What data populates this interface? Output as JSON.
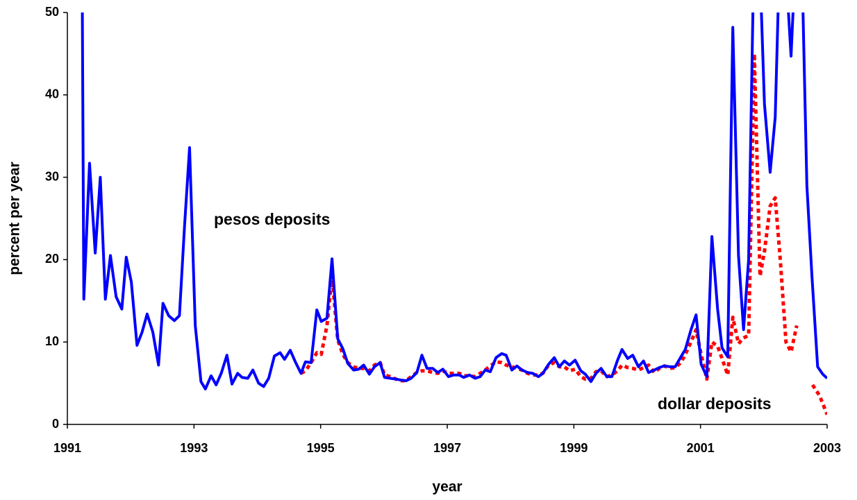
{
  "chart_data": {
    "type": "line",
    "x_label": "year",
    "y_label": "percent per year",
    "xlim": [
      1991,
      2003
    ],
    "xticks": [
      1991,
      1993,
      1995,
      1997,
      1999,
      2001,
      2003
    ],
    "ylim": [
      0,
      50
    ],
    "yticks": [
      0,
      10,
      20,
      30,
      40,
      50
    ],
    "grid": false,
    "series": [
      {
        "name": "pesos deposits",
        "color": "#0000ff",
        "style": "solid",
        "x": [
          1991.23,
          1991.26,
          1991.35,
          1991.44,
          1991.52,
          1991.6,
          1991.68,
          1991.77,
          1991.86,
          1991.93,
          1992.01,
          1992.1,
          1992.18,
          1992.26,
          1992.35,
          1992.44,
          1992.51,
          1992.6,
          1992.69,
          1992.77,
          1992.85,
          1992.93,
          1993.02,
          1993.11,
          1993.18,
          1993.27,
          1993.35,
          1993.43,
          1993.52,
          1993.6,
          1993.69,
          1993.76,
          1993.85,
          1993.93,
          1994.02,
          1994.1,
          1994.18,
          1994.27,
          1994.36,
          1994.43,
          1994.52,
          1994.6,
          1994.69,
          1994.76,
          1994.85,
          1994.94,
          1995.01,
          1995.1,
          1995.18,
          1995.27,
          1995.35,
          1995.43,
          1995.52,
          1995.6,
          1995.68,
          1995.77,
          1995.85,
          1995.94,
          1996.01,
          1996.1,
          1996.19,
          1996.26,
          1996.35,
          1996.43,
          1996.52,
          1996.6,
          1996.68,
          1996.77,
          1996.85,
          1996.93,
          1997.02,
          1997.1,
          1997.19,
          1997.26,
          1997.35,
          1997.44,
          1997.52,
          1997.6,
          1997.68,
          1997.77,
          1997.86,
          1997.93,
          1998.02,
          1998.1,
          1998.18,
          1998.27,
          1998.35,
          1998.44,
          1998.51,
          1998.6,
          1998.69,
          1998.77,
          1998.85,
          1998.93,
          1999.02,
          1999.11,
          1999.18,
          1999.27,
          1999.35,
          1999.43,
          1999.52,
          1999.6,
          1999.69,
          1999.76,
          1999.85,
          1999.93,
          2000.02,
          2000.1,
          2000.18,
          2000.27,
          2000.35,
          2000.43,
          2000.52,
          2000.6,
          2000.69,
          2000.76,
          2000.85,
          2000.93,
          2001.01,
          2001.1,
          2001.18,
          2001.27,
          2001.34,
          2001.43,
          2001.51,
          2001.6,
          2001.68,
          2001.76,
          2001.85,
          2001.94,
          2002.01,
          2002.1,
          2002.18,
          2002.26,
          2002.35,
          2002.43,
          2002.52,
          2002.59,
          2002.68,
          2002.76,
          2002.85,
          2002.93,
          2003
        ],
        "values": [
          60,
          15.2,
          31.7,
          20.8,
          30,
          15.2,
          20.5,
          15.5,
          14,
          20.3,
          17.3,
          9.6,
          11.2,
          13.4,
          11.2,
          7.2,
          14.7,
          13.2,
          12.6,
          13.2,
          24,
          33.6,
          12,
          5.2,
          4.3,
          5.9,
          4.8,
          6.2,
          8.4,
          4.9,
          6.2,
          5.7,
          5.6,
          6.6,
          5,
          4.6,
          5.6,
          8.3,
          8.7,
          7.9,
          9,
          7.6,
          6.2,
          7.6,
          7.5,
          13.9,
          12.5,
          12.9,
          20.1,
          10.4,
          9.2,
          7.4,
          6.6,
          6.7,
          7.2,
          6.1,
          7,
          7.5,
          5.7,
          5.6,
          5.5,
          5.4,
          5.3,
          5.6,
          6.3,
          8.4,
          6.8,
          6.8,
          6.3,
          6.7,
          5.8,
          6,
          6,
          5.7,
          6,
          5.6,
          5.8,
          6.6,
          6.4,
          8.1,
          8.6,
          8.4,
          6.6,
          7.1,
          6.6,
          6.3,
          6.2,
          5.8,
          6.2,
          7.3,
          8.1,
          7,
          7.7,
          7.2,
          7.8,
          6.5,
          6.1,
          5.2,
          6.2,
          6.8,
          5.8,
          5.8,
          7.8,
          9.1,
          8,
          8.4,
          7,
          7.7,
          6.3,
          6.6,
          6.9,
          7.1,
          7,
          7,
          8.2,
          9.1,
          11.5,
          13.3,
          7.3,
          5.8,
          22.8,
          14,
          9.3,
          8.2,
          48.2,
          20.5,
          11.5,
          20,
          60,
          55,
          38.9,
          30.6,
          37.3,
          60,
          55,
          44.7,
          60,
          60,
          29,
          18,
          7,
          6.1,
          5.6
        ]
      },
      {
        "name": "dollar deposits",
        "color": "#ff0000",
        "style": "dotted",
        "x": [
          1994.69,
          1994.76,
          1994.85,
          1994.94,
          1995.01,
          1995.1,
          1995.18,
          1995.27,
          1995.35,
          1995.43,
          1995.52,
          1995.6,
          1995.68,
          1995.77,
          1995.85,
          1995.94,
          1996.01,
          1996.1,
          1996.19,
          1996.26,
          1996.35,
          1996.43,
          1996.52,
          1996.6,
          1996.68,
          1996.77,
          1996.85,
          1996.93,
          1997.02,
          1997.1,
          1997.19,
          1997.26,
          1997.35,
          1997.44,
          1997.52,
          1997.6,
          1997.68,
          1997.77,
          1997.86,
          1997.93,
          1998.02,
          1998.1,
          1998.18,
          1998.27,
          1998.35,
          1998.44,
          1998.51,
          1998.6,
          1998.69,
          1998.77,
          1998.85,
          1998.93,
          1999.02,
          1999.11,
          1999.18,
          1999.27,
          1999.35,
          1999.43,
          1999.52,
          1999.6,
          1999.69,
          1999.76,
          1999.85,
          1999.93,
          2000.02,
          2000.1,
          2000.18,
          2000.27,
          2000.35,
          2000.43,
          2000.52,
          2000.6,
          2000.69,
          2000.76,
          2000.85,
          2000.93,
          2001.01,
          2001.1,
          2001.18,
          2001.27,
          2001.34,
          2001.43,
          2001.51,
          2001.6,
          2001.68,
          2001.76,
          2001.85,
          2001.94,
          2002.01,
          2002.1,
          2002.18,
          2002.26,
          2002.35,
          2002.43,
          2002.52,
          2002.64,
          2002.77,
          2002.88,
          2003
        ],
        "values": [
          6.2,
          6.5,
          7.5,
          8.7,
          8.5,
          12,
          18,
          10.3,
          8.5,
          7.5,
          7,
          6.8,
          6.8,
          6.5,
          7.2,
          7.5,
          6,
          5.8,
          5.5,
          5.3,
          5.3,
          5.8,
          6.3,
          6.5,
          6.5,
          6.3,
          6.2,
          6.5,
          6.2,
          6.2,
          6.2,
          5.9,
          5.9,
          5.8,
          6.2,
          6.6,
          7.1,
          7.6,
          7.5,
          7.2,
          7,
          6.8,
          6.6,
          6.2,
          6,
          6,
          6.2,
          7.2,
          7.5,
          7,
          7,
          6.5,
          6.7,
          5.8,
          5.5,
          5.6,
          6.4,
          6.5,
          5.8,
          6,
          6.5,
          7.2,
          6.9,
          6.8,
          6.6,
          6.9,
          7.2,
          6.3,
          6.8,
          7.1,
          6.8,
          6.9,
          7.5,
          8.5,
          10,
          11.5,
          8.5,
          5.5,
          10,
          9.5,
          8,
          6,
          13,
          9.8,
          10.5,
          10.8,
          45,
          18,
          21,
          26.5,
          27.5,
          20,
          10,
          8.8,
          12,
          null,
          4.8,
          3.5,
          1.2
        ]
      }
    ]
  }
}
